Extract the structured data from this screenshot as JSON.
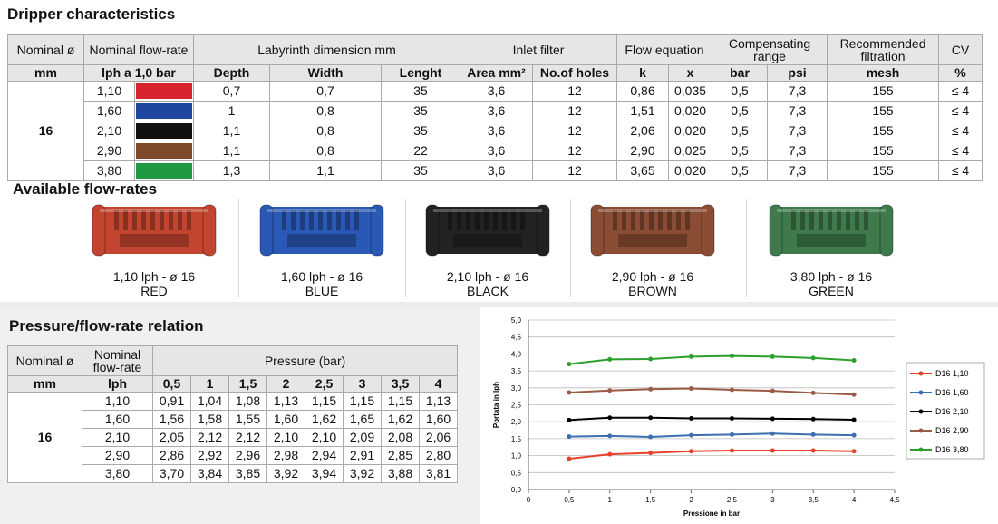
{
  "section1": {
    "title": "Dripper characteristics",
    "header": [
      "Nominal ø",
      "Nominal flow-rate",
      "Labyrinth dimension mm",
      "Inlet filter",
      "Flow equation",
      "Compensating range",
      "Recommended filtration",
      "CV"
    ],
    "subheader": [
      "mm",
      "lph a 1,0 bar",
      "Depth",
      "Width",
      "Lenght",
      "Area mm²",
      "No.of holes",
      "k",
      "x",
      "bar",
      "psi",
      "mesh",
      "%"
    ],
    "nominal": "16",
    "colors": [
      "#d9232e",
      "#1f47a0",
      "#111111",
      "#7d4a2a",
      "#1f9a43"
    ],
    "rows": [
      [
        "1,10",
        "0,7",
        "0,7",
        "35",
        "3,6",
        "12",
        "0,86",
        "0,035",
        "0,5",
        "7,3",
        "155",
        "≤ 4"
      ],
      [
        "1,60",
        "1",
        "0,8",
        "35",
        "3,6",
        "12",
        "1,51",
        "0,020",
        "0,5",
        "7,3",
        "155",
        "≤ 4"
      ],
      [
        "2,10",
        "1,1",
        "0,8",
        "35",
        "3,6",
        "12",
        "2,06",
        "0,020",
        "0,5",
        "7,3",
        "155",
        "≤ 4"
      ],
      [
        "2,90",
        "1,1",
        "0,8",
        "22",
        "3,6",
        "12",
        "2,90",
        "0,025",
        "0,5",
        "7,3",
        "155",
        "≤ 4"
      ],
      [
        "3,80",
        "1,3",
        "1,1",
        "35",
        "3,6",
        "12",
        "3,65",
        "0,020",
        "0,5",
        "7,3",
        "155",
        "≤ 4"
      ]
    ]
  },
  "section2": {
    "title": "Available flow-rates",
    "products": [
      {
        "label": "1,10 lph - ø 16",
        "color_name": "RED",
        "color": "#c4452f"
      },
      {
        "label": "1,60 lph - ø 16",
        "color_name": "BLUE",
        "color": "#2a58b5"
      },
      {
        "label": "2,10 lph - ø 16",
        "color_name": "BLACK",
        "color": "#222222"
      },
      {
        "label": "2,90 lph - ø 16",
        "color_name": "BROWN",
        "color": "#8b4c34"
      },
      {
        "label": "3,80 lph - ø 16",
        "color_name": "GREEN",
        "color": "#3e7a4c"
      }
    ]
  },
  "section3": {
    "title": "Pressure/flow-rate relation",
    "header": [
      "Nominal ø",
      "Nominal flow-rate",
      "Pressure (bar)"
    ],
    "subheader": [
      "mm",
      "lph"
    ],
    "pressures": [
      "0,5",
      "1",
      "1,5",
      "2",
      "2,5",
      "3",
      "3,5",
      "4"
    ],
    "nominal": "16",
    "rows": [
      [
        "1,10",
        "0,91",
        "1,04",
        "1,08",
        "1,13",
        "1,15",
        "1,15",
        "1,15",
        "1,13"
      ],
      [
        "1,60",
        "1,56",
        "1,58",
        "1,55",
        "1,60",
        "1,62",
        "1,65",
        "1,62",
        "1,60"
      ],
      [
        "2,10",
        "2,05",
        "2,12",
        "2,12",
        "2,10",
        "2,10",
        "2,09",
        "2,08",
        "2,06"
      ],
      [
        "2,90",
        "2,86",
        "2,92",
        "2,96",
        "2,98",
        "2,94",
        "2,91",
        "2,85",
        "2,80"
      ],
      [
        "3,80",
        "3,70",
        "3,84",
        "3,85",
        "3,92",
        "3,94",
        "3,92",
        "3,88",
        "3,81"
      ]
    ]
  },
  "chart": {
    "type": "line",
    "x_label": "Pressione in bar",
    "y_label": "Portata in lph",
    "x": [
      0.5,
      1,
      1.5,
      2,
      2.5,
      3,
      3.5,
      4
    ],
    "xlim": [
      0,
      4.5
    ],
    "xticks": [
      0,
      {
        "value": 0.5,
        "label": "0,5"
      },
      1,
      {
        "value": 1.5,
        "label": "1,5"
      },
      2,
      {
        "value": 2.5,
        "label": "2,5"
      },
      3,
      {
        "value": 3.5,
        "label": "3,5"
      },
      4,
      {
        "value": 4.5,
        "label": "4,5"
      }
    ],
    "ylim": [
      0,
      5
    ],
    "yticks": [
      {
        "value": 0,
        "label": "0,0"
      },
      {
        "value": 0.5,
        "label": "0,5"
      },
      {
        "value": 1,
        "label": "1,0"
      },
      {
        "value": 1.5,
        "label": "1,5"
      },
      {
        "value": 2,
        "label": "2,0"
      },
      {
        "value": 2.5,
        "label": "2,5"
      },
      {
        "value": 3,
        "label": "3,0"
      },
      {
        "value": 3.5,
        "label": "3,5"
      },
      {
        "value": 4,
        "label": "4,0"
      },
      {
        "value": 4.5,
        "label": "4,5"
      },
      {
        "value": 5,
        "label": "5,0"
      }
    ],
    "grid": true,
    "legend": "right",
    "series": [
      {
        "name": "D16 1,10",
        "color": "#e8412b",
        "values": [
          0.91,
          1.04,
          1.08,
          1.13,
          1.15,
          1.15,
          1.15,
          1.13
        ]
      },
      {
        "name": "D16 1,60",
        "color": "#3d6eae",
        "values": [
          1.56,
          1.58,
          1.55,
          1.6,
          1.62,
          1.65,
          1.62,
          1.6
        ]
      },
      {
        "name": "D16 2,10",
        "color": "#000000",
        "values": [
          2.05,
          2.12,
          2.12,
          2.1,
          2.1,
          2.09,
          2.08,
          2.06
        ]
      },
      {
        "name": "D16 2,90",
        "color": "#9a5a44",
        "values": [
          2.86,
          2.92,
          2.96,
          2.98,
          2.94,
          2.91,
          2.85,
          2.8
        ]
      },
      {
        "name": "D16 3,80",
        "color": "#2ca02c",
        "values": [
          3.7,
          3.84,
          3.85,
          3.92,
          3.94,
          3.92,
          3.88,
          3.81
        ]
      }
    ]
  }
}
